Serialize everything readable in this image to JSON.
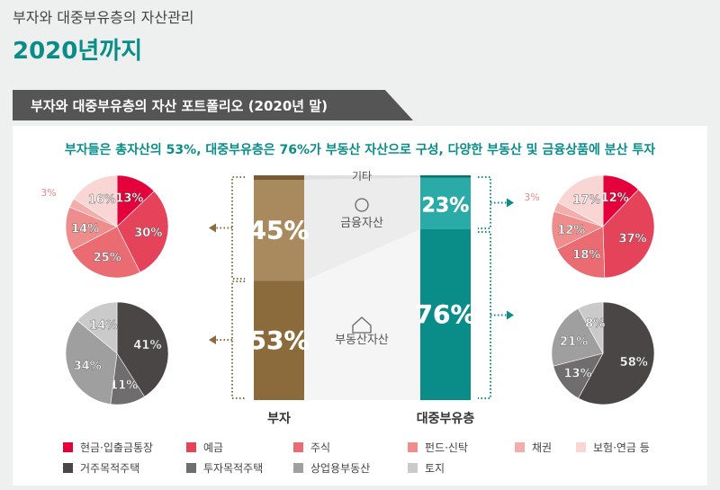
{
  "header": {
    "supertitle": "부자와 대중부유층의 자산관리",
    "title": "2020년까지"
  },
  "banner": "부자와 대중부유층의 자산 포트폴리오 (2020년 말)",
  "subtitle": "부자들은 총자산의 53%, 대중부유층은 76%가 부동산 자산으로 구성, 다양한 부동산 및 금융상품에 분산 투자",
  "chart_data": [
    {
      "type": "bar",
      "title": "",
      "categories": [
        "부자",
        "대중부유층"
      ],
      "series": [
        {
          "name": "부동산자산",
          "values": [
            53,
            76
          ]
        },
        {
          "name": "금융자산",
          "values": [
            45,
            23
          ]
        },
        {
          "name": "기타",
          "values": [
            2,
            1
          ]
        }
      ],
      "colors": {
        "부자": [
          "#8b6a3c",
          "#a88a5e",
          "#7a5a30"
        ],
        "대중부유층": [
          "#0a8c88",
          "#2aaba8",
          "#077470"
        ]
      }
    },
    {
      "type": "pie",
      "group": "부자",
      "kind": "금융자산",
      "labels": [
        "현금·입출금통장",
        "예금",
        "주식",
        "펀드·신탁",
        "채권",
        "보험·연금 등"
      ],
      "values": [
        13,
        30,
        25,
        14,
        3,
        16
      ]
    },
    {
      "type": "pie",
      "group": "대중부유층",
      "kind": "금융자산",
      "labels": [
        "현금·입출금통장",
        "예금",
        "주식",
        "펀드·신탁",
        "채권",
        "보험·연금 등"
      ],
      "values": [
        12,
        37,
        18,
        12,
        3,
        17
      ]
    },
    {
      "type": "pie",
      "group": "부자",
      "kind": "부동산자산",
      "labels": [
        "거주목적주택",
        "투자목적주택",
        "상업용부동산",
        "토지"
      ],
      "values": [
        41,
        11,
        34,
        14
      ]
    },
    {
      "type": "pie",
      "group": "대중부유층",
      "kind": "부동산자산",
      "labels": [
        "거주목적주택",
        "투자목적주택",
        "상업용부동산",
        "토지"
      ],
      "values": [
        58,
        13,
        21,
        8
      ]
    }
  ],
  "middle_labels": {
    "other": "기타",
    "financial": "금융자산",
    "real_estate": "부동산자산"
  },
  "legend": [
    {
      "label": "현금·입출금통장",
      "color": "#e4003a"
    },
    {
      "label": "예금",
      "color": "#e5435a"
    },
    {
      "label": "주식",
      "color": "#ea6b72"
    },
    {
      "label": "펀드·신탁",
      "color": "#ef8c8c"
    },
    {
      "label": "채권",
      "color": "#f3adaa"
    },
    {
      "label": "보험·연금 등",
      "color": "#f9d6d3"
    },
    {
      "label": "거주목적주택",
      "color": "#4a4646"
    },
    {
      "label": "투자목적주택",
      "color": "#6f6d6d"
    },
    {
      "label": "상업용부동산",
      "color": "#a09f9f"
    },
    {
      "label": "토지",
      "color": "#cacaca"
    }
  ]
}
